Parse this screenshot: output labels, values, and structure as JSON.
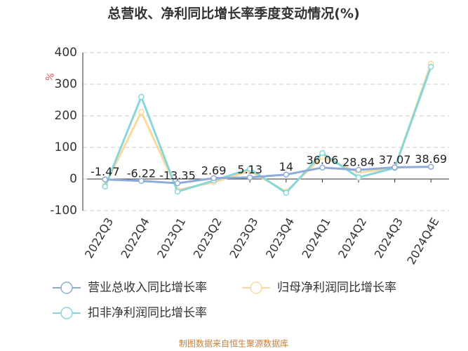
{
  "chart_data": {
    "type": "line",
    "title": "总营收、净利同比增长率季度变动情况(%)",
    "y_label": "%",
    "categories": [
      "2022Q3",
      "2022Q4",
      "2023Q1",
      "2023Q2",
      "2023Q3",
      "2023Q4",
      "2024Q1",
      "2024Q2",
      "2024Q3",
      "2024Q4E"
    ],
    "series": [
      {
        "name": "营业总收入同比增长率",
        "color": "#8eaad6",
        "values": [
          -1.47,
          -6.22,
          -13.35,
          2.69,
          5.13,
          14,
          36.06,
          28.84,
          37.07,
          38.69
        ],
        "show_labels": true
      },
      {
        "name": "归母净利润同比增长率",
        "color": "#fbd89c",
        "values": [
          -20,
          212,
          -35,
          -10,
          25,
          -40,
          70,
          20,
          35,
          365
        ]
      },
      {
        "name": "扣非净利润同比增长率",
        "color": "#86d6dc",
        "values": [
          -24,
          260,
          -40,
          -5,
          32,
          -44,
          82,
          5,
          35,
          355
        ]
      }
    ],
    "ylim": [
      -100,
      400
    ],
    "yticks": [
      -100,
      0,
      100,
      200,
      300,
      400
    ],
    "grid": true,
    "source": "制图数据来自恒生聚源数据库"
  }
}
